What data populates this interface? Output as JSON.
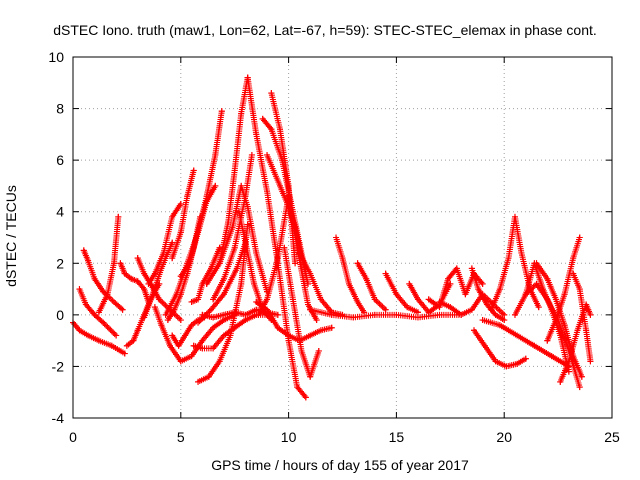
{
  "chart_data": {
    "type": "scatter",
    "title": "dSTEC Iono. truth (maw1, Lon=62, Lat=-67, h=59): STEC-STEC_elemax in phase cont.",
    "xlabel": "GPS time / hours of day 155 of year 2017",
    "ylabel": "dSTEC  / TECUs",
    "xlim": [
      0,
      25
    ],
    "ylim": [
      -4,
      10
    ],
    "xticks": [
      "0",
      "5",
      "10",
      "15",
      "20",
      "25"
    ],
    "yticks": [
      "-4",
      "-2",
      "0",
      "2",
      "4",
      "6",
      "8",
      "10"
    ],
    "grid": true,
    "marker": "plus",
    "color": "#ff0000",
    "series": [
      {
        "x": [
          0.0,
          0.3,
          0.7,
          1.2,
          1.8,
          2.4
        ],
        "y": [
          -0.3,
          -0.6,
          -0.8,
          -1.0,
          -1.2,
          -1.5
        ]
      },
      {
        "x": [
          0.3,
          0.6,
          1.0,
          1.4,
          2.0
        ],
        "y": [
          1.0,
          0.4,
          0.0,
          -0.3,
          -0.8
        ]
      },
      {
        "x": [
          0.5,
          0.7,
          1.0,
          1.4,
          1.9,
          2.3
        ],
        "y": [
          2.5,
          2.1,
          1.4,
          0.9,
          0.5,
          0.2
        ]
      },
      {
        "x": [
          1.2,
          1.6,
          1.9,
          2.1
        ],
        "y": [
          0.1,
          0.8,
          2.0,
          3.8
        ]
      },
      {
        "x": [
          2.2,
          2.4,
          2.7,
          3.0,
          3.3,
          3.5
        ],
        "y": [
          2.0,
          1.6,
          1.4,
          1.3,
          1.0,
          0.5
        ]
      },
      {
        "x": [
          2.5,
          2.8,
          3.0,
          3.3,
          3.6,
          4.0
        ],
        "y": [
          -1.2,
          -1.0,
          -0.6,
          0.0,
          0.6,
          1.2
        ]
      },
      {
        "x": [
          3.0,
          3.3,
          3.6,
          4.0,
          4.5,
          5.0
        ],
        "y": [
          2.2,
          1.6,
          1.2,
          0.6,
          0.2,
          -0.2
        ]
      },
      {
        "x": [
          3.3,
          3.7,
          4.1,
          4.6
        ],
        "y": [
          -0.1,
          0.8,
          1.8,
          2.8
        ]
      },
      {
        "x": [
          3.5,
          3.8,
          4.2,
          4.6,
          5.0
        ],
        "y": [
          1.2,
          1.6,
          2.4,
          3.8,
          4.3
        ]
      },
      {
        "x": [
          3.8,
          4.1,
          4.5,
          5.0,
          5.5,
          6.0,
          6.5,
          7.0,
          7.5
        ],
        "y": [
          0.3,
          -0.4,
          -1.2,
          -1.8,
          -1.6,
          -1.0,
          -0.5,
          -0.2,
          0.0
        ]
      },
      {
        "x": [
          4.3,
          4.8,
          5.3,
          5.8,
          6.2,
          6.6
        ],
        "y": [
          0.0,
          0.8,
          2.0,
          3.2,
          4.4,
          5.0
        ]
      },
      {
        "x": [
          4.4,
          4.7,
          5.0,
          5.3,
          5.6,
          5.9
        ],
        "y": [
          -0.2,
          0.2,
          0.8,
          1.6,
          2.6,
          3.8
        ]
      },
      {
        "x": [
          4.6,
          5.0,
          5.3,
          5.6
        ],
        "y": [
          2.2,
          3.2,
          4.6,
          5.6
        ]
      },
      {
        "x": [
          4.6,
          4.9,
          5.2,
          5.5,
          5.8,
          6.1
        ],
        "y": [
          -0.8,
          -1.2,
          -0.8,
          -0.4,
          -0.2,
          -0.1
        ]
      },
      {
        "x": [
          5.0,
          5.4,
          5.8,
          6.2,
          6.6,
          6.9
        ],
        "y": [
          1.5,
          2.0,
          3.2,
          4.6,
          6.2,
          7.9
        ]
      },
      {
        "x": [
          5.5,
          5.8,
          6.0,
          6.4,
          6.8
        ],
        "y": [
          0.5,
          0.6,
          1.2,
          1.8,
          2.6
        ]
      },
      {
        "x": [
          5.8,
          6.4,
          7.0,
          7.6,
          8.0
        ],
        "y": [
          -0.3,
          0.2,
          0.8,
          1.8,
          2.8
        ]
      },
      {
        "x": [
          5.6,
          6.0,
          6.5,
          7.0,
          7.5,
          8.0,
          8.5,
          9.0
        ],
        "y": [
          -1.2,
          -1.3,
          -1.3,
          -0.8,
          -0.5,
          -0.2,
          0.0,
          0.0
        ]
      },
      {
        "x": [
          6.0,
          6.5,
          7.0,
          7.5,
          8.0,
          8.5,
          9.0,
          9.5
        ],
        "y": [
          0.0,
          -0.1,
          0.0,
          0.1,
          0.0,
          0.2,
          0.1,
          0.0
        ]
      },
      {
        "x": [
          6.2,
          6.8,
          7.4,
          7.8,
          8.1,
          8.5,
          9.0
        ],
        "y": [
          1.2,
          2.0,
          3.4,
          5.0,
          4.2,
          2.4,
          0.9
        ]
      },
      {
        "x": [
          5.8,
          6.3,
          6.8,
          7.3,
          7.8,
          8.1
        ],
        "y": [
          -2.6,
          -2.4,
          -1.8,
          -0.8,
          1.2,
          3.5
        ]
      },
      {
        "x": [
          6.5,
          7.0,
          7.5,
          8.0,
          8.3
        ],
        "y": [
          0.6,
          1.4,
          2.6,
          4.6,
          6.2
        ]
      },
      {
        "x": [
          6.8,
          7.2,
          7.5,
          7.8,
          8.1
        ],
        "y": [
          2.0,
          3.6,
          5.6,
          7.8,
          9.2
        ]
      },
      {
        "x": [
          8.1,
          8.5,
          9.0,
          9.5,
          10.0,
          10.4,
          10.8
        ],
        "y": [
          9.2,
          7.0,
          4.8,
          2.0,
          -1.0,
          -2.8,
          -3.2
        ]
      },
      {
        "x": [
          7.7,
          8.0,
          8.4,
          8.8,
          9.2
        ],
        "y": [
          4.0,
          2.8,
          1.2,
          0.2,
          -0.2
        ]
      },
      {
        "x": [
          8.5,
          9.0,
          9.5,
          10.0,
          10.5,
          11.0,
          11.5,
          12.0
        ],
        "y": [
          0.5,
          0.2,
          -0.5,
          -0.8,
          -1.0,
          -0.8,
          -0.6,
          -0.5
        ]
      },
      {
        "x": [
          8.6,
          9.0,
          9.5,
          10.0,
          10.4,
          10.9,
          11.3
        ],
        "y": [
          0.0,
          0.6,
          2.2,
          4.6,
          2.6,
          0.4,
          -0.2
        ]
      },
      {
        "x": [
          8.8,
          9.2,
          9.7,
          10.1,
          10.5,
          10.9
        ],
        "y": [
          7.6,
          7.2,
          6.0,
          4.4,
          2.8,
          1.2
        ]
      },
      {
        "x": [
          9.0,
          9.3,
          9.6,
          10.0,
          10.3,
          10.6
        ],
        "y": [
          6.2,
          5.6,
          5.0,
          4.2,
          3.4,
          2.2
        ]
      },
      {
        "x": [
          9.2,
          9.6,
          10.0,
          10.3
        ],
        "y": [
          8.6,
          7.2,
          5.0,
          2.0
        ]
      },
      {
        "x": [
          9.8,
          10.2,
          10.6,
          11.0,
          11.4
        ],
        "y": [
          2.6,
          0.6,
          -1.4,
          -2.4,
          -1.4
        ]
      },
      {
        "x": [
          10.5,
          11.0,
          11.5,
          12.0,
          12.5
        ],
        "y": [
          2.4,
          1.6,
          0.6,
          0.1,
          0.0
        ]
      },
      {
        "x": [
          11.0,
          12.0,
          13.0,
          14.0,
          15.0,
          16.0,
          17.0,
          18.0
        ],
        "y": [
          0.2,
          0.0,
          -0.1,
          0.0,
          0.0,
          -0.1,
          0.0,
          0.0
        ]
      },
      {
        "x": [
          12.2,
          12.5,
          12.8,
          13.2,
          13.5
        ],
        "y": [
          3.0,
          2.2,
          1.2,
          0.5,
          0.1
        ]
      },
      {
        "x": [
          13.2,
          13.6,
          14.0,
          14.5
        ],
        "y": [
          2.0,
          1.4,
          0.6,
          0.2
        ]
      },
      {
        "x": [
          14.5,
          15.0,
          15.5,
          16.0
        ],
        "y": [
          1.6,
          0.8,
          0.3,
          0.1
        ]
      },
      {
        "x": [
          15.6,
          16.0,
          16.5,
          17.0,
          17.5
        ],
        "y": [
          1.2,
          0.6,
          0.1,
          0.4,
          1.2
        ]
      },
      {
        "x": [
          16.5,
          17.0,
          17.4,
          17.8,
          18.2,
          18.6,
          19.0
        ],
        "y": [
          0.6,
          0.3,
          1.4,
          1.8,
          0.8,
          1.6,
          1.2
        ]
      },
      {
        "x": [
          17.0,
          17.5,
          18.0,
          18.5,
          19.0,
          19.5,
          20.0
        ],
        "y": [
          0.5,
          0.3,
          0.0,
          0.2,
          0.8,
          0.4,
          0.0
        ]
      },
      {
        "x": [
          18.5,
          18.8,
          19.2,
          19.6,
          20.0
        ],
        "y": [
          1.8,
          1.0,
          0.4,
          0.0,
          -0.2
        ]
      },
      {
        "x": [
          19.4,
          19.8,
          20.2,
          20.5,
          20.8,
          21.2,
          21.6
        ],
        "y": [
          0.2,
          1.0,
          2.2,
          3.8,
          2.4,
          1.0,
          0.3
        ]
      },
      {
        "x": [
          18.6,
          19.1,
          19.6,
          20.1,
          20.6,
          21.0
        ],
        "y": [
          -0.6,
          -1.2,
          -1.8,
          -2.0,
          -1.9,
          -1.7
        ]
      },
      {
        "x": [
          19.0,
          19.8,
          20.6,
          21.4,
          22.2,
          23.0
        ],
        "y": [
          -0.2,
          -0.4,
          -0.8,
          -1.2,
          -1.6,
          -2.0
        ]
      },
      {
        "x": [
          20.5,
          21.0,
          21.4,
          21.8,
          22.2,
          22.6,
          23.0
        ],
        "y": [
          0.0,
          0.8,
          2.0,
          1.0,
          0.2,
          -0.8,
          -2.2
        ]
      },
      {
        "x": [
          21.0,
          21.5,
          22.0,
          22.5,
          23.0,
          23.5
        ],
        "y": [
          0.8,
          1.2,
          0.6,
          -0.2,
          -1.4,
          -2.8
        ]
      },
      {
        "x": [
          21.5,
          22.0,
          22.4,
          22.8,
          23.2,
          23.6
        ],
        "y": [
          2.0,
          1.4,
          0.6,
          -0.4,
          -1.6,
          -2.4
        ]
      },
      {
        "x": [
          22.0,
          22.4,
          22.8,
          23.2,
          23.5
        ],
        "y": [
          -1.0,
          -0.2,
          0.8,
          2.2,
          3.0
        ]
      },
      {
        "x": [
          22.6,
          23.0,
          23.4,
          23.8,
          24.0
        ],
        "y": [
          -2.6,
          -1.8,
          -0.6,
          0.4,
          0.0
        ]
      },
      {
        "x": [
          23.2,
          23.5,
          23.8,
          24.0
        ],
        "y": [
          1.6,
          1.0,
          -0.6,
          -1.8
        ]
      }
    ]
  }
}
